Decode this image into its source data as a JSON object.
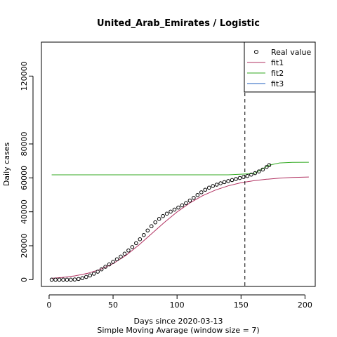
{
  "chart_data": {
    "type": "line",
    "title": "United_Arab_Emirates / Logistic",
    "xlabel": "Days since 2020-03-13",
    "xlabel2": "Simple Moving Avarage (window size = 7)",
    "ylabel": "Daily cases",
    "xlim": [
      -6,
      208
    ],
    "ylim": [
      -4000,
      140000
    ],
    "xticks": [
      0,
      50,
      100,
      150,
      200
    ],
    "yticks": [
      0,
      20000,
      40000,
      60000,
      80000,
      120000
    ],
    "vline_x": 153,
    "legend_position": "top-right",
    "colors": {
      "real": "#000000",
      "fit1": "#b03060",
      "fit2": "#33aa22",
      "fit3": "#1f5fbf"
    },
    "legend": [
      {
        "key": "real",
        "label": "Real value",
        "kind": "point"
      },
      {
        "key": "fit1",
        "label": "fit1",
        "kind": "line"
      },
      {
        "key": "fit2",
        "label": "fit2",
        "kind": "line"
      },
      {
        "key": "fit3",
        "label": "fit3",
        "kind": "line"
      }
    ],
    "real_values": [
      [
        2,
        0
      ],
      [
        5,
        0
      ],
      [
        8,
        0
      ],
      [
        11,
        0
      ],
      [
        14,
        0
      ],
      [
        17,
        0
      ],
      [
        20,
        100
      ],
      [
        23,
        400
      ],
      [
        26,
        900
      ],
      [
        29,
        1600
      ],
      [
        32,
        2500
      ],
      [
        35,
        3500
      ],
      [
        38,
        4700
      ],
      [
        41,
        6100
      ],
      [
        44,
        7600
      ],
      [
        47,
        9000
      ],
      [
        50,
        10500
      ],
      [
        53,
        12000
      ],
      [
        56,
        13600
      ],
      [
        59,
        15300
      ],
      [
        62,
        17200
      ],
      [
        65,
        19200
      ],
      [
        68,
        21500
      ],
      [
        71,
        23800
      ],
      [
        74,
        26300
      ],
      [
        77,
        29000
      ],
      [
        80,
        31500
      ],
      [
        83,
        33800
      ],
      [
        86,
        35800
      ],
      [
        89,
        37500
      ],
      [
        92,
        38900
      ],
      [
        95,
        40100
      ],
      [
        98,
        41300
      ],
      [
        101,
        42500
      ],
      [
        104,
        43800
      ],
      [
        107,
        45100
      ],
      [
        110,
        46600
      ],
      [
        113,
        48200
      ],
      [
        116,
        49900
      ],
      [
        119,
        51500
      ],
      [
        122,
        53000
      ],
      [
        125,
        54200
      ],
      [
        128,
        55200
      ],
      [
        131,
        56000
      ],
      [
        134,
        56800
      ],
      [
        137,
        57500
      ],
      [
        140,
        58100
      ],
      [
        143,
        58700
      ],
      [
        146,
        59300
      ],
      [
        149,
        59900
      ],
      [
        152,
        60500
      ],
      [
        155,
        61100
      ],
      [
        158,
        61900
      ],
      [
        161,
        62800
      ],
      [
        164,
        63800
      ],
      [
        167,
        64900
      ],
      [
        170,
        66400
      ],
      [
        172,
        67500
      ]
    ],
    "fit1": [
      [
        2,
        800
      ],
      [
        10,
        1300
      ],
      [
        20,
        2200
      ],
      [
        30,
        3700
      ],
      [
        40,
        6000
      ],
      [
        50,
        9500
      ],
      [
        60,
        14300
      ],
      [
        70,
        20300
      ],
      [
        80,
        27000
      ],
      [
        90,
        33700
      ],
      [
        100,
        39900
      ],
      [
        110,
        45200
      ],
      [
        120,
        49500
      ],
      [
        130,
        52800
      ],
      [
        140,
        55300
      ],
      [
        150,
        57100
      ],
      [
        160,
        58300
      ],
      [
        170,
        59200
      ],
      [
        180,
        59800
      ],
      [
        190,
        60200
      ],
      [
        203,
        60500
      ]
    ],
    "fit2": [
      [
        2,
        61800
      ],
      [
        140,
        61800
      ],
      [
        160,
        62500
      ],
      [
        172,
        67500
      ],
      [
        180,
        68800
      ],
      [
        190,
        69100
      ],
      [
        203,
        69200
      ]
    ],
    "fit3": []
  }
}
